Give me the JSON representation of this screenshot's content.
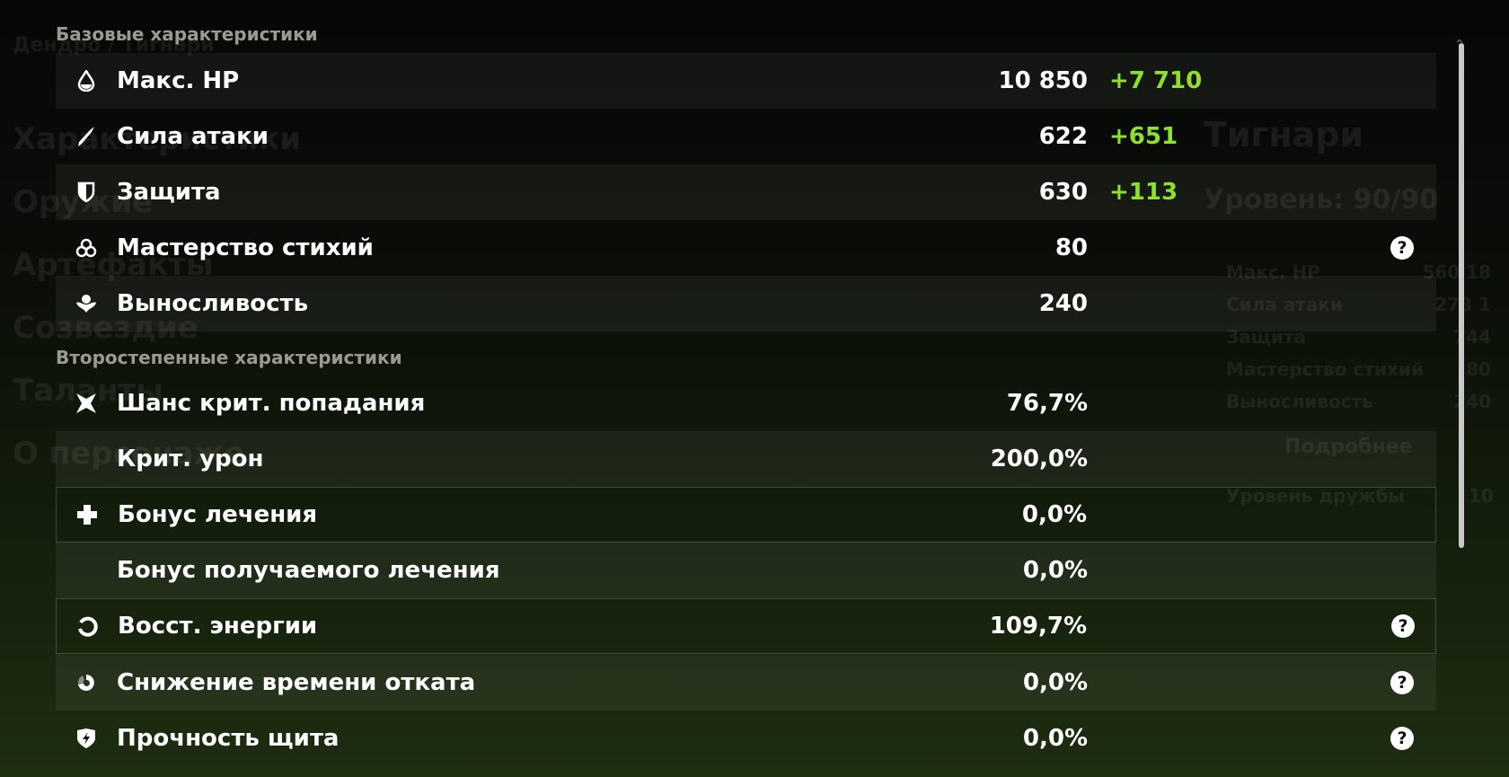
{
  "background": {
    "breadcrumb": "Дендро / Тигнари",
    "menu": [
      "Характеристики",
      "Оружие",
      "Артефакты",
      "Созвездие",
      "Таланты",
      "О персонаже"
    ],
    "character": {
      "name": "Тигнари",
      "level": "Уровень: 90/90",
      "stats": [
        {
          "label": "Макс. HP",
          "value": "18 560"
        },
        {
          "label": "Сила атаки",
          "value": "1 273"
        },
        {
          "label": "Защита",
          "value": "744"
        },
        {
          "label": "Мастерство стихий",
          "value": "80"
        },
        {
          "label": "Выносливость",
          "value": "240"
        }
      ],
      "details_button": "Подробнее",
      "friendship_label": "Уровень дружбы",
      "friendship_value": "10"
    }
  },
  "base": {
    "title": "Базовые характеристики",
    "rows": [
      {
        "icon": "hp-drop-icon",
        "label": "Макс. HP",
        "value": "10 850",
        "bonus": "+7 710"
      },
      {
        "icon": "sword-icon",
        "label": "Сила атаки",
        "value": "622",
        "bonus": "+651"
      },
      {
        "icon": "shield-icon",
        "label": "Защита",
        "value": "630",
        "bonus": "+113"
      },
      {
        "icon": "elemental-mastery-icon",
        "label": "Мастерство стихий",
        "value": "80",
        "help": true
      },
      {
        "icon": "stamina-icon",
        "label": "Выносливость",
        "value": "240"
      }
    ]
  },
  "secondary": {
    "title": "Второстепенные характеристики",
    "rows": [
      {
        "icon": "crit-rate-icon",
        "label": "Шанс крит. попадания",
        "value": "76,7%"
      },
      {
        "label": "Крит. урон",
        "value": "200,0%"
      },
      {
        "icon": "healing-cross-icon",
        "label": "Бонус лечения",
        "value": "0,0%"
      },
      {
        "label": "Бонус получаемого лечения",
        "value": "0,0%"
      },
      {
        "icon": "energy-recharge-icon",
        "label": "Восст. энергии",
        "value": "109,7%",
        "help": true
      },
      {
        "icon": "cooldown-icon",
        "label": "Снижение времени отката",
        "value": "0,0%",
        "help": true
      },
      {
        "icon": "shield-strength-icon",
        "label": "Прочность щита",
        "value": "0,0%",
        "help": true
      }
    ]
  },
  "colors": {
    "bonus": "#8ee02a"
  }
}
